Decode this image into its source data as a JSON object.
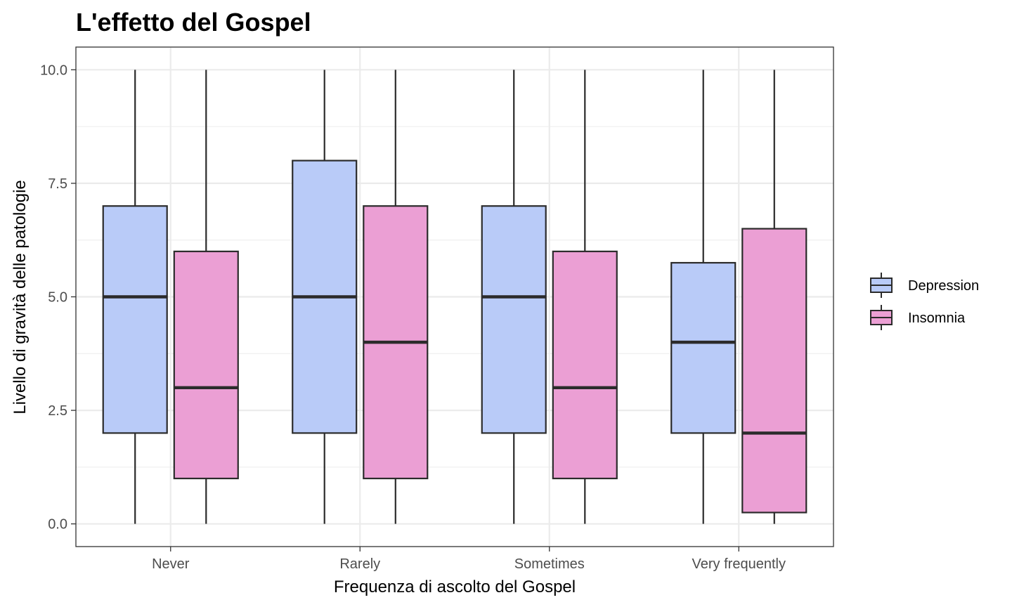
{
  "chart_data": {
    "type": "boxplot",
    "title": "L'effetto del Gospel",
    "xlabel": "Frequenza di ascolto del Gospel",
    "ylabel": "Livello di gravità delle patologie",
    "categories": [
      "Never",
      "Rarely",
      "Sometimes",
      "Very frequently"
    ],
    "ylim": [
      -0.5,
      10.5
    ],
    "yticks": [
      0.0,
      2.5,
      5.0,
      7.5,
      10.0
    ],
    "ytick_labels": [
      "0.0",
      "2.5",
      "5.0",
      "7.5",
      "10.0"
    ],
    "grid": true,
    "legend_position": "right",
    "series": [
      {
        "name": "Depression",
        "color": "#b9cbf8",
        "boxes": [
          {
            "min": 0,
            "q1": 2,
            "median": 5,
            "q3": 7,
            "max": 10
          },
          {
            "min": 0,
            "q1": 2,
            "median": 5,
            "q3": 8,
            "max": 10
          },
          {
            "min": 0,
            "q1": 2,
            "median": 5,
            "q3": 7,
            "max": 10
          },
          {
            "min": 0,
            "q1": 2,
            "median": 4,
            "q3": 5.75,
            "max": 10
          }
        ]
      },
      {
        "name": "Insomnia",
        "color": "#eb9fd4",
        "boxes": [
          {
            "min": 0,
            "q1": 1,
            "median": 3,
            "q3": 6,
            "max": 10
          },
          {
            "min": 0,
            "q1": 1,
            "median": 4,
            "q3": 7,
            "max": 10
          },
          {
            "min": 0,
            "q1": 1,
            "median": 3,
            "q3": 6,
            "max": 10
          },
          {
            "min": 0,
            "q1": 0.25,
            "median": 2,
            "q3": 6.5,
            "max": 10
          }
        ]
      }
    ]
  }
}
